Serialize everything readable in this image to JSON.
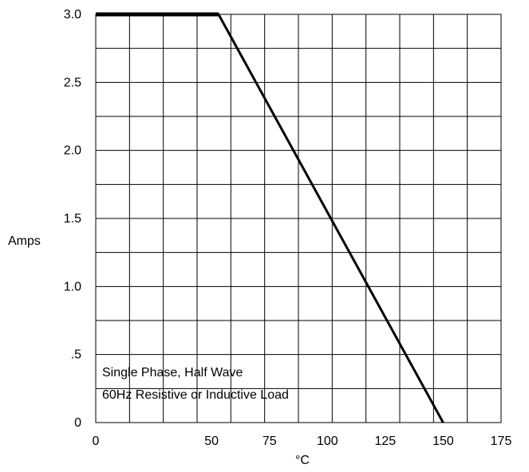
{
  "chart_data": {
    "type": "line",
    "title": "",
    "xlabel": "°C",
    "ylabel": "Amps",
    "xlim": [
      0,
      175
    ],
    "ylim": [
      0,
      3.0
    ],
    "x_ticks": [
      "0",
      "50",
      "75",
      "100",
      "125",
      "150",
      "175"
    ],
    "y_ticks": [
      "0",
      ".5",
      "1.0",
      "1.5",
      "2.0",
      "2.5",
      "3.0"
    ],
    "grid": true,
    "series": [
      {
        "x": [
          0,
          53,
          150
        ],
        "y": [
          3.0,
          3.0,
          0
        ]
      }
    ],
    "annotations": [
      "Single Phase, Half Wave",
      "60Hz Resistive or Inductive Load"
    ]
  },
  "colors": {
    "line": "#000000",
    "grid": "#000000",
    "background": "#ffffff"
  }
}
